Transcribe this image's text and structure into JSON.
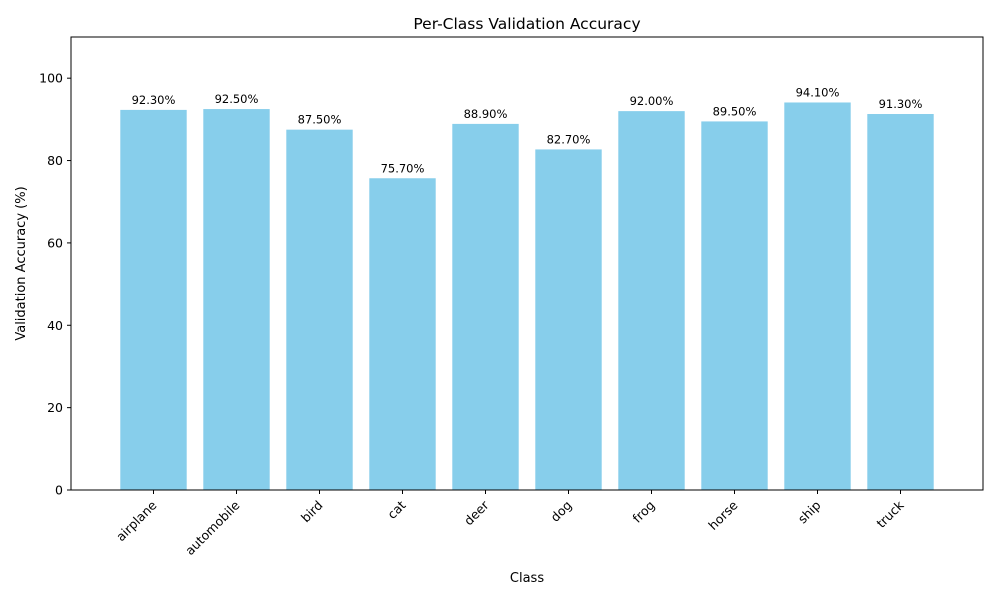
{
  "chart_data": {
    "type": "bar",
    "title": "Per-Class Validation Accuracy",
    "xlabel": "Class",
    "ylabel": "Validation Accuracy (%)",
    "categories": [
      "airplane",
      "automobile",
      "bird",
      "cat",
      "deer",
      "dog",
      "frog",
      "horse",
      "ship",
      "truck"
    ],
    "values": [
      92.3,
      92.5,
      87.5,
      75.7,
      88.9,
      82.7,
      92.0,
      89.5,
      94.1,
      91.3
    ],
    "data_labels": [
      "92.30%",
      "92.50%",
      "87.50%",
      "75.70%",
      "88.90%",
      "82.70%",
      "92.00%",
      "89.50%",
      "94.10%",
      "91.30%"
    ],
    "ylim": [
      0,
      110
    ],
    "yticks": [
      0,
      20,
      40,
      60,
      80,
      100
    ],
    "xtick_rotation": 45,
    "grid": false,
    "bar_color": "#87CEEB"
  }
}
